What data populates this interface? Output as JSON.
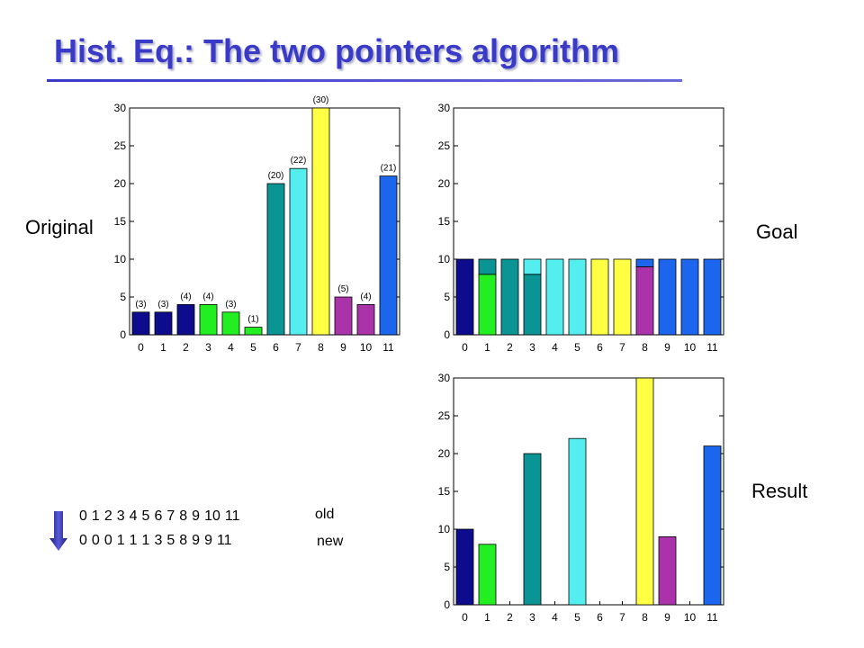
{
  "title": "Hist. Eq.: The two pointers algorithm",
  "labels": {
    "original": "Original",
    "goal": "Goal",
    "result": "Result",
    "old": "old",
    "new": "new"
  },
  "mapping": {
    "old": [
      "0",
      "1",
      "2",
      "3",
      "4",
      "5",
      "6",
      "7",
      "8",
      "9",
      "10",
      "11"
    ],
    "new": [
      "0",
      "0",
      "0",
      "1",
      "1",
      "1",
      "3",
      "5",
      "8",
      "9",
      "9",
      "11"
    ]
  },
  "colors": {
    "title": "#3a3ac8",
    "c0": "#0c0c8c",
    "c1": "#22ee22",
    "c2": "#0a9494",
    "c3": "#55eeee",
    "c4": "#ffff44",
    "c5": "#aa33aa",
    "c6": "#1c66ee"
  },
  "chart_data": [
    {
      "type": "bar",
      "categories": [
        "0",
        "1",
        "2",
        "3",
        "4",
        "5",
        "6",
        "7",
        "8",
        "9",
        "10",
        "11"
      ],
      "values": [
        3,
        3,
        4,
        4,
        3,
        1,
        20,
        22,
        30,
        5,
        4,
        21
      ],
      "data_labels": [
        "(3)",
        "(3)",
        "(4)",
        "(4)",
        "(3)",
        "(1)",
        "(20)",
        "(22)",
        "(30)",
        "(5)",
        "(4)",
        "(21)"
      ],
      "bar_colors": [
        "#0c0c8c",
        "#0c0c8c",
        "#0c0c8c",
        "#22ee22",
        "#22ee22",
        "#22ee22",
        "#0a9494",
        "#55eeee",
        "#ffff44",
        "#aa33aa",
        "#aa33aa",
        "#1c66ee"
      ],
      "yticks": [
        "0",
        "5",
        "10",
        "15",
        "20",
        "25",
        "30"
      ],
      "ylim": [
        0,
        30
      ],
      "title": "",
      "xlabel": "",
      "ylabel": ""
    },
    {
      "type": "bar",
      "stacked": true,
      "categories": [
        "0",
        "1",
        "2",
        "3",
        "4",
        "5",
        "6",
        "7",
        "8",
        "9",
        "10",
        "11"
      ],
      "stacks": [
        [
          {
            "value": 10,
            "color": "#0c0c8c"
          }
        ],
        [
          {
            "value": 8,
            "color": "#22ee22"
          },
          {
            "value": 2,
            "color": "#0a9494"
          }
        ],
        [
          {
            "value": 10,
            "color": "#0a9494"
          }
        ],
        [
          {
            "value": 8,
            "color": "#0a9494"
          },
          {
            "value": 2,
            "color": "#55eeee"
          }
        ],
        [
          {
            "value": 10,
            "color": "#55eeee"
          }
        ],
        [
          {
            "value": 10,
            "color": "#55eeee"
          }
        ],
        [
          {
            "value": 10,
            "color": "#ffff44"
          }
        ],
        [
          {
            "value": 10,
            "color": "#ffff44"
          }
        ],
        [
          {
            "value": 9,
            "color": "#aa33aa"
          },
          {
            "value": 1,
            "color": "#1c66ee"
          }
        ],
        [
          {
            "value": 10,
            "color": "#1c66ee"
          }
        ],
        [
          {
            "value": 10,
            "color": "#1c66ee"
          }
        ],
        [
          {
            "value": 10,
            "color": "#1c66ee"
          }
        ]
      ],
      "yticks": [
        "0",
        "5",
        "10",
        "15",
        "20",
        "25",
        "30"
      ],
      "ylim": [
        0,
        30
      ],
      "title": "",
      "xlabel": "",
      "ylabel": ""
    },
    {
      "type": "bar",
      "categories": [
        "0",
        "1",
        "2",
        "3",
        "4",
        "5",
        "6",
        "7",
        "8",
        "9",
        "10",
        "11"
      ],
      "values": [
        10,
        8,
        0,
        20,
        0,
        22,
        0,
        0,
        30,
        9,
        0,
        21
      ],
      "bar_colors": [
        "#0c0c8c",
        "#22ee22",
        "#0a9494",
        "#0a9494",
        "#55eeee",
        "#55eeee",
        "#ffff44",
        "#ffff44",
        "#ffff44",
        "#aa33aa",
        "#1c66ee",
        "#1c66ee"
      ],
      "yticks": [
        "0",
        "5",
        "10",
        "15",
        "20",
        "25",
        "30"
      ],
      "ylim": [
        0,
        30
      ],
      "title": "",
      "xlabel": "",
      "ylabel": ""
    }
  ]
}
